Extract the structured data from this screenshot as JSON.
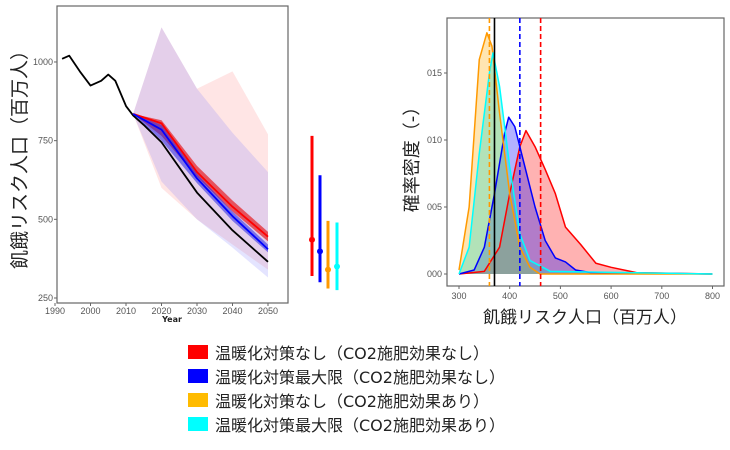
{
  "chart_data": [
    {
      "type": "line",
      "ylabel": "飢餓リスク人口（百万人）",
      "xlabel": "Year",
      "xlim": [
        1990,
        2053
      ],
      "ylim": [
        240,
        1160
      ],
      "xticks": [
        1990,
        2000,
        2010,
        2020,
        2030,
        2040,
        2050
      ],
      "yticks": [
        250,
        500,
        750,
        1000
      ],
      "grid": false,
      "series": [
        {
          "color": "#000000",
          "kind": "history",
          "x": [
            1992,
            1994,
            1997,
            2000,
            2003,
            2005,
            2007,
            2010,
            2012,
            2015,
            2020,
            2030,
            2040,
            2050
          ],
          "y": [
            1010,
            1020,
            970,
            925,
            940,
            960,
            940,
            860,
            830,
            800,
            745,
            585,
            465,
            365
          ]
        },
        {
          "color": "#ff0000",
          "x": [
            2012,
            2020,
            2030,
            2040,
            2050
          ],
          "y": [
            835,
            805,
            650,
            540,
            445
          ],
          "band_inner": {
            "upper": [
              835,
              815,
              670,
              560,
              460
            ],
            "lower": [
              835,
              765,
              635,
              525,
              430
            ]
          },
          "band_outer": {
            "upper": [
              835,
              1110,
              915,
              970,
              770
            ],
            "lower": [
              835,
              600,
              500,
              420,
              340
            ]
          }
        },
        {
          "color": "#0000ff",
          "x": [
            2012,
            2020,
            2030,
            2040,
            2050
          ],
          "y": [
            835,
            785,
            630,
            510,
            405
          ],
          "band_inner": {
            "upper": [
              835,
              800,
              645,
              525,
              420
            ],
            "lower": [
              835,
              750,
              615,
              495,
              395
            ]
          },
          "band_outer": {
            "upper": [
              835,
              1110,
              915,
              775,
              650
            ],
            "lower": [
              835,
              620,
              500,
              410,
              315
            ]
          }
        }
      ],
      "range_bars_2050": [
        {
          "color": "#ff0000",
          "low": 320,
          "high": 765,
          "point": 435
        },
        {
          "color": "#0000ff",
          "low": 300,
          "high": 640,
          "point": 398
        },
        {
          "color": "#ff9900",
          "low": 280,
          "high": 495,
          "point": 340
        },
        {
          "color": "#00ffff",
          "low": 275,
          "high": 490,
          "point": 350
        }
      ]
    },
    {
      "type": "area",
      "ylabel": "確率密度（-）",
      "xlabel": "飢餓リスク人口（百万人）",
      "xlim": [
        280,
        820
      ],
      "ylim": [
        -0.001,
        0.019
      ],
      "xticks": [
        300,
        400,
        500,
        600,
        700,
        800
      ],
      "yticks": [
        0,
        0.005,
        0.01,
        0.015
      ],
      "ytick_labels": [
        "000",
        "005",
        "010",
        "015"
      ],
      "grid": false,
      "series": [
        {
          "color": "#ff0000",
          "fill": "rgba(255,0,0,0.3)",
          "x": [
            300,
            350,
            380,
            400,
            420,
            432,
            450,
            470,
            490,
            510,
            540,
            570,
            600,
            650,
            800
          ],
          "y": [
            0,
            0.0002,
            0.002,
            0.006,
            0.0095,
            0.0107,
            0.0095,
            0.0078,
            0.006,
            0.0035,
            0.0022,
            0.0008,
            0.0005,
            0.0001,
            0
          ]
        },
        {
          "color": "#0000ff",
          "fill": "rgba(0,0,255,0.3)",
          "x": [
            300,
            330,
            350,
            370,
            390,
            398,
            410,
            430,
            450,
            470,
            490,
            510,
            530,
            560,
            800
          ],
          "y": [
            0,
            0.0003,
            0.002,
            0.006,
            0.0105,
            0.0117,
            0.011,
            0.008,
            0.005,
            0.0025,
            0.0012,
            0.0009,
            0.0003,
            0.0001,
            0
          ]
        },
        {
          "color": "#ff9900",
          "fill": "rgba(255,170,0,0.3)",
          "x": [
            300,
            320,
            340,
            355,
            365,
            380,
            400,
            420,
            440,
            460,
            800
          ],
          "y": [
            0.0003,
            0.005,
            0.016,
            0.018,
            0.017,
            0.012,
            0.006,
            0.002,
            0.0005,
            0,
            0
          ]
        },
        {
          "color": "#00ffff",
          "fill": "rgba(0,220,200,0.3)",
          "x": [
            300,
            320,
            340,
            360,
            367,
            380,
            400,
            420,
            440,
            480,
            800
          ],
          "y": [
            0,
            0.002,
            0.009,
            0.015,
            0.0165,
            0.014,
            0.008,
            0.003,
            0.001,
            0.0002,
            0
          ]
        }
      ],
      "vlines": [
        {
          "x": 370,
          "color": "#000000",
          "style": "solid"
        },
        {
          "x": 360,
          "color": "#ff9900",
          "style": "dashed"
        },
        {
          "x": 420,
          "color": "#0000ff",
          "style": "dashed"
        },
        {
          "x": 461,
          "color": "#ff0000",
          "style": "dashed"
        }
      ]
    }
  ],
  "legend": [
    {
      "label": "温暖化対策なし（CO2施肥効果なし）",
      "color": "#ff0000"
    },
    {
      "label": "温暖化対策最大限（CO2施肥効果なし）",
      "color": "#0000ff"
    },
    {
      "label": "温暖化対策なし（CO2施肥効果あり）",
      "color": "#ffbb00"
    },
    {
      "label": "温暖化対策最大限（CO2施肥効果あり）",
      "color": "#00ffff"
    }
  ]
}
